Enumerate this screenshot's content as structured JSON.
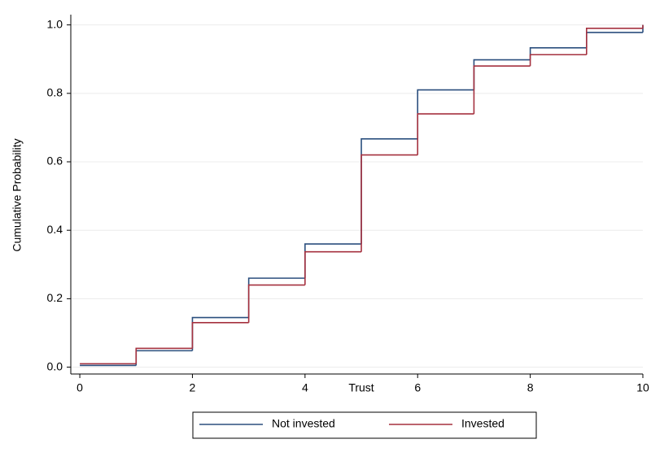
{
  "chart_data": {
    "type": "step",
    "x_label": "Trust",
    "y_label": "Cumulative Probability",
    "x": [
      0,
      1,
      2,
      3,
      4,
      5,
      6,
      7,
      8,
      9,
      10
    ],
    "series": [
      {
        "name": "Not invested",
        "color": "#2b4f7e",
        "values": [
          0.005,
          0.048,
          0.145,
          0.26,
          0.36,
          0.667,
          0.81,
          0.898,
          0.933,
          0.978,
          1.0
        ]
      },
      {
        "name": "Invested",
        "color": "#a5313f",
        "values": [
          0.01,
          0.055,
          0.13,
          0.24,
          0.337,
          0.62,
          0.74,
          0.88,
          0.913,
          0.99,
          1.0
        ]
      }
    ],
    "xlim": [
      -0.16,
      10.0
    ],
    "xticks": [
      0,
      2,
      4,
      6,
      8,
      10
    ],
    "ylim": [
      -0.02,
      1.03
    ],
    "yticks": [
      {
        "value": 0,
        "label": "0.0"
      },
      0.2,
      0.4,
      0.6,
      0.8,
      {
        "value": 1,
        "label": "1.0"
      }
    ],
    "grid": true,
    "legend": "bottom"
  }
}
